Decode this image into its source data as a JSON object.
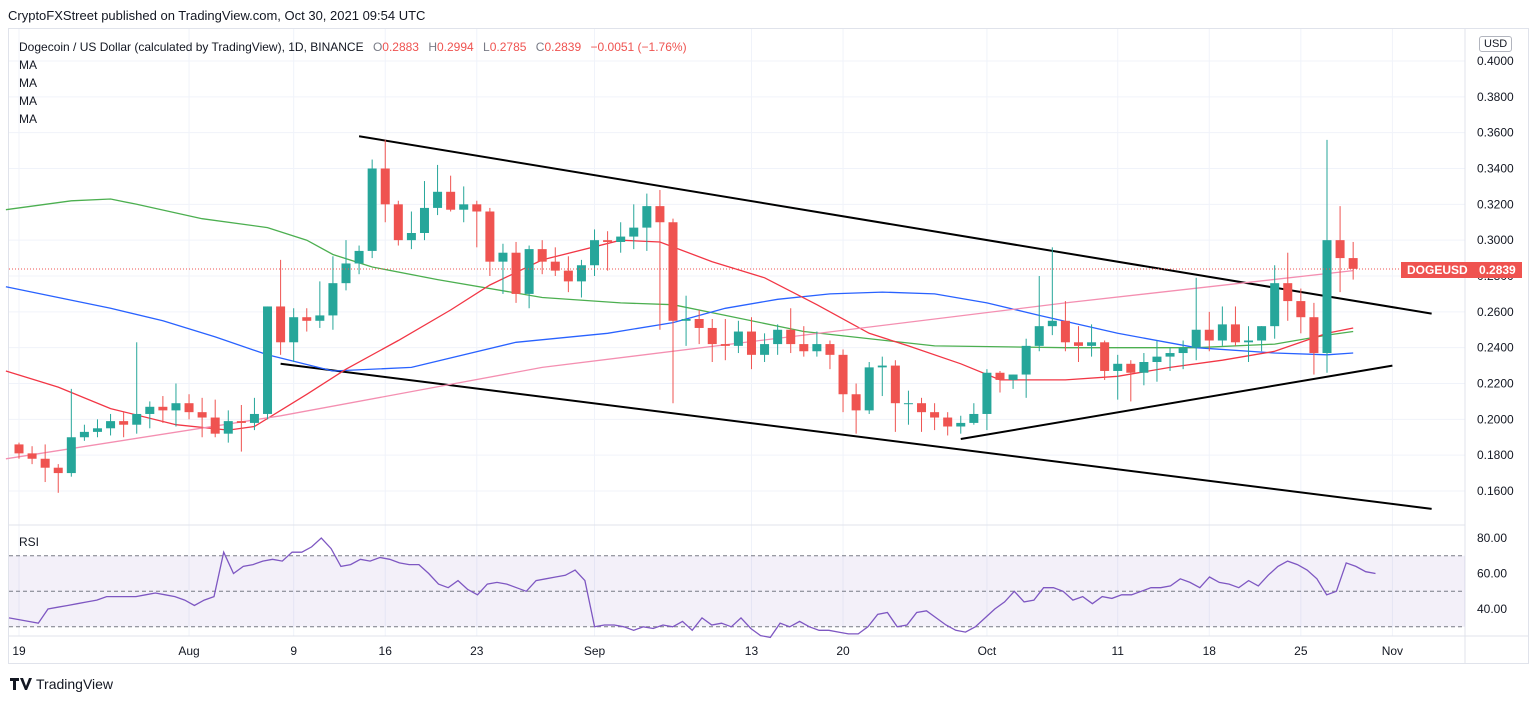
{
  "header": {
    "publisher": "CryptoFXStreet published on TradingView.com, Oct 30, 2021 09:54 UTC"
  },
  "legend": {
    "symbol": "Dogecoin / US Dollar (calculated by TradingView), 1D, BINANCE",
    "o_label": "O",
    "o": "0.2883",
    "h_label": "H",
    "h": "0.2994",
    "l_label": "L",
    "l": "0.2785",
    "c_label": "C",
    "c": "0.2839",
    "change": "−0.0051 (−1.76%)",
    "ma_labels": [
      "MA",
      "MA",
      "MA",
      "MA"
    ]
  },
  "currency": "USD",
  "price_tag": {
    "symbol": "DOGEUSD",
    "value": "0.2839"
  },
  "rsi_label": "RSI",
  "footer": {
    "brand": "TradingView"
  },
  "colors": {
    "up": "#26a69a",
    "down": "#ef5350",
    "ma_red": "#f23645",
    "ma_green": "#4caf50",
    "ma_blue": "#2962ff",
    "ma_pink": "#f48fb1",
    "rsi": "#7e57c2"
  },
  "chart_data": {
    "type": "candlestick",
    "title": "Dogecoin / US Dollar (calculated by TradingView), 1D, BINANCE",
    "y_ticks": [
      "0.4000",
      "0.3800",
      "0.3600",
      "0.3400",
      "0.3200",
      "0.3000",
      "0.2800",
      "0.2600",
      "0.2400",
      "0.2200",
      "0.2000",
      "0.1800",
      "0.1600"
    ],
    "ylim": [
      0.146,
      0.406
    ],
    "x_ticks": [
      {
        "label": "19",
        "day": 0
      },
      {
        "label": "Aug",
        "day": 13
      },
      {
        "label": "9",
        "day": 21
      },
      {
        "label": "16",
        "day": 28
      },
      {
        "label": "23",
        "day": 35
      },
      {
        "label": "Sep",
        "day": 44
      },
      {
        "label": "13",
        "day": 56
      },
      {
        "label": "20",
        "day": 63
      },
      {
        "label": "Oct",
        "day": 74
      },
      {
        "label": "11",
        "day": 84
      },
      {
        "label": "18",
        "day": 91
      },
      {
        "label": "25",
        "day": 98
      },
      {
        "label": "Nov",
        "day": 105
      }
    ],
    "candles": [
      [
        0.186,
        0.187,
        0.178,
        0.181
      ],
      [
        0.181,
        0.185,
        0.175,
        0.178
      ],
      [
        0.178,
        0.186,
        0.165,
        0.173
      ],
      [
        0.173,
        0.175,
        0.159,
        0.17
      ],
      [
        0.17,
        0.217,
        0.168,
        0.19
      ],
      [
        0.19,
        0.197,
        0.188,
        0.193
      ],
      [
        0.193,
        0.2,
        0.19,
        0.195
      ],
      [
        0.195,
        0.203,
        0.191,
        0.199
      ],
      [
        0.199,
        0.204,
        0.19,
        0.197
      ],
      [
        0.197,
        0.243,
        0.192,
        0.203
      ],
      [
        0.203,
        0.21,
        0.195,
        0.207
      ],
      [
        0.207,
        0.213,
        0.198,
        0.205
      ],
      [
        0.205,
        0.22,
        0.196,
        0.209
      ],
      [
        0.209,
        0.214,
        0.2,
        0.204
      ],
      [
        0.204,
        0.212,
        0.19,
        0.201
      ],
      [
        0.201,
        0.211,
        0.19,
        0.192
      ],
      [
        0.192,
        0.205,
        0.187,
        0.199
      ],
      [
        0.199,
        0.208,
        0.182,
        0.198
      ],
      [
        0.198,
        0.212,
        0.194,
        0.203
      ],
      [
        0.203,
        0.263,
        0.2,
        0.263
      ],
      [
        0.263,
        0.289,
        0.236,
        0.243
      ],
      [
        0.243,
        0.262,
        0.232,
        0.257
      ],
      [
        0.257,
        0.262,
        0.249,
        0.255
      ],
      [
        0.255,
        0.277,
        0.251,
        0.258
      ],
      [
        0.258,
        0.291,
        0.25,
        0.276
      ],
      [
        0.276,
        0.3,
        0.272,
        0.287
      ],
      [
        0.287,
        0.297,
        0.281,
        0.294
      ],
      [
        0.294,
        0.345,
        0.29,
        0.34
      ],
      [
        0.34,
        0.356,
        0.31,
        0.32
      ],
      [
        0.32,
        0.322,
        0.297,
        0.3
      ],
      [
        0.3,
        0.316,
        0.295,
        0.304
      ],
      [
        0.304,
        0.333,
        0.3,
        0.318
      ],
      [
        0.318,
        0.342,
        0.314,
        0.327
      ],
      [
        0.327,
        0.336,
        0.316,
        0.317
      ],
      [
        0.317,
        0.33,
        0.31,
        0.32
      ],
      [
        0.32,
        0.322,
        0.296,
        0.316
      ],
      [
        0.316,
        0.318,
        0.28,
        0.288
      ],
      [
        0.288,
        0.298,
        0.27,
        0.293
      ],
      [
        0.293,
        0.299,
        0.265,
        0.27
      ],
      [
        0.27,
        0.297,
        0.262,
        0.295
      ],
      [
        0.295,
        0.3,
        0.281,
        0.288
      ],
      [
        0.288,
        0.296,
        0.28,
        0.283
      ],
      [
        0.283,
        0.291,
        0.271,
        0.277
      ],
      [
        0.277,
        0.289,
        0.268,
        0.286
      ],
      [
        0.286,
        0.306,
        0.28,
        0.3
      ],
      [
        0.3,
        0.305,
        0.283,
        0.299
      ],
      [
        0.299,
        0.31,
        0.293,
        0.302
      ],
      [
        0.302,
        0.32,
        0.295,
        0.307
      ],
      [
        0.307,
        0.326,
        0.294,
        0.319
      ],
      [
        0.319,
        0.328,
        0.25,
        0.31
      ],
      [
        0.31,
        0.312,
        0.209,
        0.255
      ],
      [
        0.255,
        0.269,
        0.241,
        0.256
      ],
      [
        0.256,
        0.261,
        0.242,
        0.251
      ],
      [
        0.251,
        0.256,
        0.232,
        0.242
      ],
      [
        0.242,
        0.256,
        0.233,
        0.241
      ],
      [
        0.241,
        0.255,
        0.237,
        0.249
      ],
      [
        0.249,
        0.257,
        0.228,
        0.236
      ],
      [
        0.236,
        0.248,
        0.232,
        0.242
      ],
      [
        0.242,
        0.253,
        0.236,
        0.25
      ],
      [
        0.25,
        0.262,
        0.237,
        0.242
      ],
      [
        0.242,
        0.252,
        0.235,
        0.238
      ],
      [
        0.238,
        0.249,
        0.235,
        0.242
      ],
      [
        0.242,
        0.244,
        0.228,
        0.236
      ],
      [
        0.236,
        0.239,
        0.204,
        0.214
      ],
      [
        0.214,
        0.22,
        0.192,
        0.205
      ],
      [
        0.205,
        0.232,
        0.203,
        0.229
      ],
      [
        0.229,
        0.235,
        0.213,
        0.23
      ],
      [
        0.23,
        0.233,
        0.193,
        0.209
      ],
      [
        0.209,
        0.216,
        0.197,
        0.209
      ],
      [
        0.209,
        0.212,
        0.193,
        0.204
      ],
      [
        0.204,
        0.209,
        0.194,
        0.201
      ],
      [
        0.201,
        0.204,
        0.191,
        0.196
      ],
      [
        0.196,
        0.202,
        0.192,
        0.198
      ],
      [
        0.198,
        0.209,
        0.197,
        0.203
      ],
      [
        0.203,
        0.228,
        0.194,
        0.226
      ],
      [
        0.226,
        0.227,
        0.215,
        0.222
      ],
      [
        0.222,
        0.225,
        0.217,
        0.225
      ],
      [
        0.225,
        0.245,
        0.212,
        0.241
      ],
      [
        0.241,
        0.28,
        0.238,
        0.252
      ],
      [
        0.252,
        0.296,
        0.247,
        0.255
      ],
      [
        0.255,
        0.266,
        0.238,
        0.243
      ],
      [
        0.243,
        0.252,
        0.232,
        0.241
      ],
      [
        0.241,
        0.253,
        0.235,
        0.243
      ],
      [
        0.243,
        0.244,
        0.222,
        0.227
      ],
      [
        0.227,
        0.236,
        0.211,
        0.231
      ],
      [
        0.231,
        0.233,
        0.21,
        0.226
      ],
      [
        0.226,
        0.237,
        0.219,
        0.232
      ],
      [
        0.232,
        0.244,
        0.221,
        0.235
      ],
      [
        0.235,
        0.24,
        0.227,
        0.237
      ],
      [
        0.237,
        0.244,
        0.228,
        0.24
      ],
      [
        0.24,
        0.279,
        0.233,
        0.25
      ],
      [
        0.25,
        0.26,
        0.238,
        0.244
      ],
      [
        0.244,
        0.263,
        0.241,
        0.253
      ],
      [
        0.253,
        0.263,
        0.241,
        0.243
      ],
      [
        0.243,
        0.252,
        0.232,
        0.244
      ],
      [
        0.244,
        0.252,
        0.238,
        0.252
      ],
      [
        0.252,
        0.286,
        0.245,
        0.276
      ],
      [
        0.276,
        0.293,
        0.255,
        0.266
      ],
      [
        0.266,
        0.273,
        0.248,
        0.257
      ],
      [
        0.257,
        0.265,
        0.225,
        0.237
      ],
      [
        0.237,
        0.356,
        0.226,
        0.3
      ],
      [
        0.3,
        0.319,
        0.271,
        0.29
      ],
      [
        0.29,
        0.299,
        0.278,
        0.284
      ]
    ],
    "moving_averages": [
      {
        "color": "#4caf50",
        "points": [
          [
            -1,
            0.317
          ],
          [
            4,
            0.322
          ],
          [
            7,
            0.323
          ],
          [
            9,
            0.32
          ],
          [
            14,
            0.312
          ],
          [
            19,
            0.307
          ],
          [
            22,
            0.3
          ],
          [
            24,
            0.292
          ],
          [
            27,
            0.285
          ],
          [
            32,
            0.278
          ],
          [
            40,
            0.268
          ],
          [
            46,
            0.265
          ],
          [
            50,
            0.264
          ],
          [
            54,
            0.258
          ],
          [
            60,
            0.249
          ],
          [
            70,
            0.241
          ],
          [
            80,
            0.24
          ],
          [
            90,
            0.24
          ],
          [
            96,
            0.242
          ],
          [
            100,
            0.247
          ],
          [
            102,
            0.249
          ]
        ]
      },
      {
        "color": "#2962ff",
        "points": [
          [
            -1,
            0.274
          ],
          [
            3,
            0.268
          ],
          [
            7,
            0.262
          ],
          [
            11,
            0.255
          ],
          [
            15,
            0.246
          ],
          [
            19,
            0.236
          ],
          [
            24,
            0.227
          ],
          [
            30,
            0.229
          ],
          [
            38,
            0.243
          ],
          [
            45,
            0.248
          ],
          [
            50,
            0.254
          ],
          [
            54,
            0.262
          ],
          [
            58,
            0.267
          ],
          [
            62,
            0.27
          ],
          [
            66,
            0.271
          ],
          [
            70,
            0.27
          ],
          [
            74,
            0.265
          ],
          [
            78,
            0.258
          ],
          [
            84,
            0.248
          ],
          [
            90,
            0.24
          ],
          [
            96,
            0.237
          ],
          [
            100,
            0.236
          ],
          [
            102,
            0.237
          ]
        ]
      },
      {
        "color": "#f23645",
        "points": [
          [
            -1,
            0.227
          ],
          [
            3,
            0.218
          ],
          [
            7,
            0.206
          ],
          [
            12,
            0.197
          ],
          [
            16,
            0.194
          ],
          [
            18,
            0.196
          ],
          [
            20,
            0.205
          ],
          [
            22,
            0.214
          ],
          [
            25,
            0.228
          ],
          [
            29,
            0.244
          ],
          [
            33,
            0.261
          ],
          [
            36,
            0.275
          ],
          [
            40,
            0.289
          ],
          [
            46,
            0.3
          ],
          [
            49,
            0.299
          ],
          [
            53,
            0.288
          ],
          [
            57,
            0.279
          ],
          [
            61,
            0.264
          ],
          [
            65,
            0.248
          ],
          [
            68,
            0.241
          ],
          [
            72,
            0.231
          ],
          [
            75,
            0.222
          ],
          [
            80,
            0.222
          ],
          [
            84,
            0.224
          ],
          [
            88,
            0.229
          ],
          [
            92,
            0.233
          ],
          [
            96,
            0.238
          ],
          [
            100,
            0.248
          ],
          [
            102,
            0.251
          ]
        ]
      },
      {
        "color": "#f48fb1",
        "points": [
          [
            -1,
            0.178
          ],
          [
            20,
            0.202
          ],
          [
            40,
            0.229
          ],
          [
            60,
            0.247
          ],
          [
            80,
            0.265
          ],
          [
            102,
            0.283
          ]
        ]
      }
    ],
    "trendlines": [
      {
        "from": [
          26,
          0.358
        ],
        "to": [
          108,
          0.259
        ]
      },
      {
        "from": [
          20,
          0.231
        ],
        "to": [
          108,
          0.15
        ]
      },
      {
        "from": [
          72,
          0.189
        ],
        "to": [
          105,
          0.23
        ]
      }
    ],
    "last_price": 0.2839,
    "rsi": {
      "y_ticks": [
        "80.00",
        "60.00",
        "40.00"
      ],
      "ylim": [
        25,
        87
      ],
      "bands": [
        70,
        50,
        30
      ],
      "values": [
        35,
        34,
        33,
        32,
        40,
        41,
        42,
        43,
        44,
        45,
        47,
        47,
        47,
        47,
        48,
        49,
        48,
        47,
        45,
        42,
        45,
        47,
        72,
        60,
        64,
        65,
        67,
        68,
        67,
        72,
        72,
        75,
        80,
        74,
        64,
        65,
        68,
        67,
        69,
        68,
        66,
        65,
        65,
        60,
        54,
        52,
        56,
        51,
        48,
        54,
        55,
        54,
        52,
        50,
        56,
        57,
        58,
        59,
        62,
        56,
        30,
        31,
        31,
        30,
        28,
        30,
        29,
        31,
        30,
        33,
        28,
        35,
        31,
        32,
        30,
        35,
        29,
        25,
        24,
        32,
        30,
        33,
        30,
        28,
        28,
        27,
        26,
        26,
        30,
        37,
        38,
        30,
        31,
        38,
        39,
        35,
        31,
        28,
        27,
        30,
        35,
        40,
        44,
        50,
        44,
        45,
        52,
        52,
        50,
        45,
        47,
        43,
        47,
        46,
        48,
        48,
        50,
        52,
        52,
        53,
        57,
        55,
        52,
        58,
        55,
        54,
        52,
        56,
        53,
        59,
        64,
        67,
        65,
        62,
        57,
        48,
        50,
        66,
        64,
        61,
        60
      ]
    }
  }
}
